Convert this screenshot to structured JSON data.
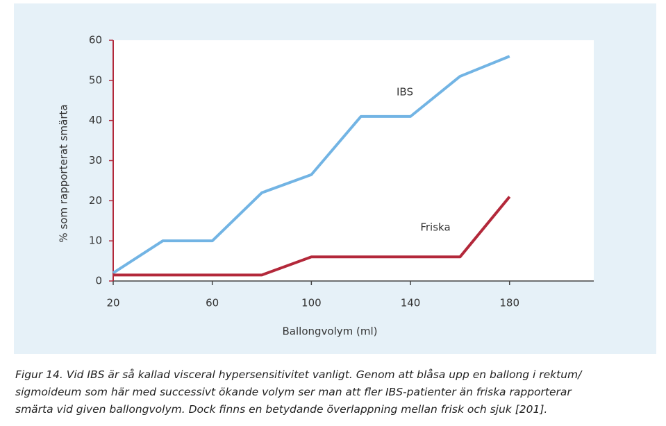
{
  "chart_data": {
    "type": "line",
    "x_label": "Ballongvolym (ml)",
    "y_label": "% som rapporterat smärta",
    "xlim": [
      20,
      214
    ],
    "xticks": [
      20,
      60,
      100,
      140,
      180
    ],
    "ylim": [
      0,
      60
    ],
    "yticks": [
      0,
      10,
      20,
      30,
      40,
      50,
      60
    ],
    "series": [
      {
        "name": "IBS",
        "color": "#72b4e4",
        "x": [
          20,
          40,
          60,
          80,
          100,
          120,
          140,
          160,
          180
        ],
        "values": [
          2,
          10,
          10,
          22,
          26.5,
          41,
          41,
          51,
          56
        ]
      },
      {
        "name": "Friska",
        "color": "#b3283a",
        "x": [
          20,
          80,
          100,
          160,
          180
        ],
        "values": [
          1.5,
          1.5,
          6,
          6,
          21
        ]
      }
    ]
  },
  "caption": [
    "Figur 14. Vid IBS är så kallad visceral hypersensitivitet vanligt. Genom att blåsa upp en ballong i rektum/",
    "sigmoideum som här med successivt ökande volym ser man att fler IBS-patienter än friska rapporterar",
    "smärta vid given ballongvolym. Dock finns en betydande överlappning mellan frisk och sjuk [201]."
  ]
}
